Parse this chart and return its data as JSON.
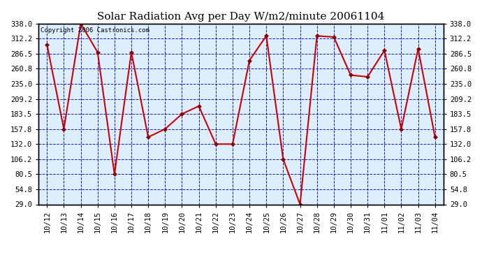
{
  "title": "Solar Radiation Avg per Day W/m2/minute 20061104",
  "copyright": "Copyright 2006 Castronics.com",
  "x_labels": [
    "10/12",
    "10/13",
    "10/14",
    "10/15",
    "10/16",
    "10/17",
    "10/18",
    "10/19",
    "10/20",
    "10/21",
    "10/22",
    "10/23",
    "10/24",
    "10/25",
    "10/26",
    "10/27",
    "10/28",
    "10/29",
    "10/30",
    "10/31",
    "11/01",
    "11/02",
    "11/03",
    "11/04"
  ],
  "y_values": [
    302.0,
    157.8,
    338.0,
    289.0,
    80.5,
    289.0,
    144.0,
    157.8,
    183.5,
    197.0,
    132.0,
    132.0,
    275.0,
    317.0,
    106.2,
    29.0,
    317.0,
    315.0,
    250.0,
    247.0,
    292.0,
    157.8,
    295.0,
    144.0
  ],
  "y_min": 29.0,
  "y_max": 338.0,
  "y_ticks": [
    29.0,
    54.8,
    80.5,
    106.2,
    132.0,
    157.8,
    183.5,
    209.2,
    235.0,
    260.8,
    286.5,
    312.2,
    338.0
  ],
  "line_color": "#cc0000",
  "marker_color": "#880000",
  "bg_color": "#ddeeff",
  "outer_bg": "#ffffff",
  "grid_color": "#0000bb",
  "title_fontsize": 11,
  "tick_fontsize": 7.5,
  "copyright_fontsize": 6.5
}
